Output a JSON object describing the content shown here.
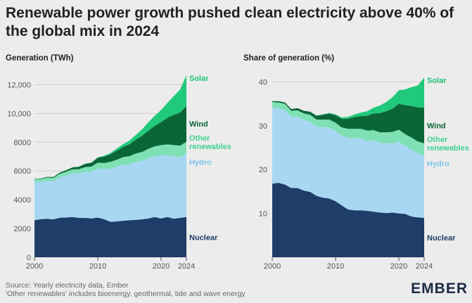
{
  "title": "Renewable power growth pushed clean electricity above 40% of the global mix in 2024",
  "footer": {
    "source": "Source: Yearly electricity data, Ember",
    "note": "'Other renewables' includes bioenergy, geothermal, tide and wave energy"
  },
  "logo": "EMBER",
  "colors": {
    "Nuclear": "#1f3d69",
    "Hydro": "#a7d7f2",
    "Other renewables": "#7fe0b3",
    "Wind": "#0b6637",
    "Solar": "#21c97a",
    "label_Other renewables": "#3fd292",
    "label_Hydro": "#7cc4ea",
    "label_Solar": "#1fc276"
  },
  "chart_data": [
    {
      "type": "area",
      "stacked": true,
      "title": "Generation (TWh)",
      "x": [
        2000,
        2001,
        2002,
        2003,
        2004,
        2005,
        2006,
        2007,
        2008,
        2009,
        2010,
        2011,
        2012,
        2013,
        2014,
        2015,
        2016,
        2017,
        2018,
        2019,
        2020,
        2021,
        2022,
        2023,
        2024
      ],
      "xticks": [
        "2000",
        "2010",
        "2020",
        "2024"
      ],
      "yticks": [
        "0",
        "2000",
        "4000",
        "6000",
        "8000",
        "10,000",
        "12,000"
      ],
      "ylim": [
        0,
        12800
      ],
      "series": [
        {
          "name": "Nuclear",
          "values": [
            2580,
            2650,
            2680,
            2640,
            2750,
            2770,
            2800,
            2740,
            2740,
            2700,
            2760,
            2650,
            2470,
            2490,
            2540,
            2580,
            2600,
            2640,
            2700,
            2800,
            2700,
            2800,
            2680,
            2740,
            2800
          ]
        },
        {
          "name": "Hydro",
          "values": [
            2650,
            2590,
            2650,
            2660,
            2820,
            2920,
            3040,
            3080,
            3200,
            3240,
            3420,
            3480,
            3700,
            3800,
            3890,
            3890,
            4030,
            4060,
            4180,
            4210,
            4370,
            4290,
            4340,
            4220,
            4400
          ]
        },
        {
          "name": "Other renewables",
          "values": [
            190,
            200,
            210,
            220,
            240,
            260,
            280,
            300,
            330,
            360,
            400,
            430,
            460,
            490,
            530,
            560,
            580,
            620,
            660,
            700,
            730,
            760,
            780,
            800,
            830
          ]
        },
        {
          "name": "Wind",
          "values": [
            30,
            40,
            50,
            60,
            80,
            100,
            130,
            170,
            220,
            270,
            340,
            440,
            520,
            640,
            710,
            830,
            960,
            1130,
            1270,
            1420,
            1590,
            1850,
            2100,
            2300,
            2490
          ]
        },
        {
          "name": "Solar",
          "values": [
            1,
            2,
            2,
            3,
            4,
            4,
            5,
            7,
            12,
            20,
            32,
            60,
            100,
            140,
            190,
            250,
            330,
            450,
            580,
            700,
            850,
            1030,
            1300,
            1600,
            2130
          ]
        }
      ]
    },
    {
      "type": "area",
      "stacked": true,
      "title": "Share of generation (%)",
      "x": [
        2000,
        2001,
        2002,
        2003,
        2004,
        2005,
        2006,
        2007,
        2008,
        2009,
        2010,
        2011,
        2012,
        2013,
        2014,
        2015,
        2016,
        2017,
        2018,
        2019,
        2020,
        2021,
        2022,
        2023,
        2024
      ],
      "xticks": [
        "2000",
        "2010",
        "2020",
        "2024"
      ],
      "yticks": [
        "10",
        "20",
        "30",
        "40"
      ],
      "ylim": [
        0,
        42
      ],
      "series": [
        {
          "name": "Nuclear",
          "values": [
            16.8,
            17.0,
            16.6,
            15.8,
            15.8,
            15.2,
            14.9,
            14.0,
            13.6,
            13.4,
            12.8,
            11.8,
            10.9,
            10.7,
            10.7,
            10.6,
            10.4,
            10.2,
            10.1,
            10.2,
            10.0,
            9.9,
            9.3,
            9.1,
            9.0
          ]
        },
        {
          "name": "Hydro",
          "values": [
            17.4,
            17.0,
            17.0,
            16.2,
            16.3,
            16.1,
            16.1,
            15.8,
            16.1,
            16.2,
            16.0,
            15.9,
            16.4,
            16.5,
            16.4,
            16.0,
            16.3,
            15.9,
            15.9,
            15.8,
            16.4,
            15.5,
            15.3,
            14.6,
            14.3
          ]
        },
        {
          "name": "Other renewables",
          "values": [
            1.2,
            1.3,
            1.4,
            1.4,
            1.4,
            1.5,
            1.5,
            1.6,
            1.7,
            1.8,
            1.9,
            1.9,
            2.0,
            2.1,
            2.2,
            2.3,
            2.3,
            2.4,
            2.5,
            2.6,
            2.7,
            2.7,
            2.7,
            2.7,
            2.7
          ]
        },
        {
          "name": "Wind",
          "values": [
            0.2,
            0.3,
            0.3,
            0.4,
            0.5,
            0.6,
            0.7,
            0.9,
            1.1,
            1.4,
            1.7,
            2.0,
            2.3,
            2.7,
            2.9,
            3.4,
            3.8,
            4.4,
            4.8,
            5.3,
            5.9,
            6.6,
            7.2,
            7.8,
            8.1
          ]
        },
        {
          "name": "Solar",
          "values": [
            0.0,
            0.0,
            0.0,
            0.0,
            0.0,
            0.0,
            0.0,
            0.0,
            0.1,
            0.1,
            0.2,
            0.3,
            0.4,
            0.6,
            0.8,
            1.0,
            1.3,
            1.7,
            2.1,
            2.6,
            3.1,
            3.6,
            4.3,
            5.0,
            6.9
          ]
        }
      ]
    }
  ]
}
